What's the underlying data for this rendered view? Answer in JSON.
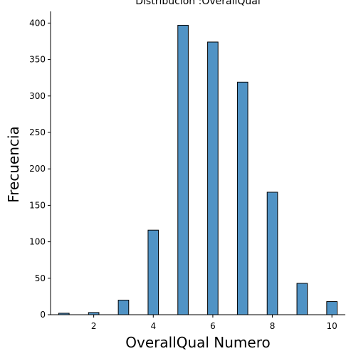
{
  "chart_data": {
    "type": "bar",
    "title": "Distribución :OverallQual",
    "xlabel": "OverallQual Numero",
    "ylabel": "Frecuencia",
    "x": [
      1,
      2,
      3,
      4,
      5,
      6,
      7,
      8,
      9,
      10
    ],
    "values": [
      2,
      3,
      20,
      116,
      397,
      374,
      319,
      168,
      43,
      18
    ],
    "bin_width": 0.35,
    "xlim": [
      0.55,
      10.45
    ],
    "ylim": [
      0,
      416
    ],
    "xticks": [
      2,
      4,
      6,
      8,
      10
    ],
    "yticks": [
      0,
      50,
      100,
      150,
      200,
      250,
      300,
      350,
      400
    ],
    "grid": false,
    "bar_color": "#5093c5",
    "edge_color": "#000000"
  }
}
